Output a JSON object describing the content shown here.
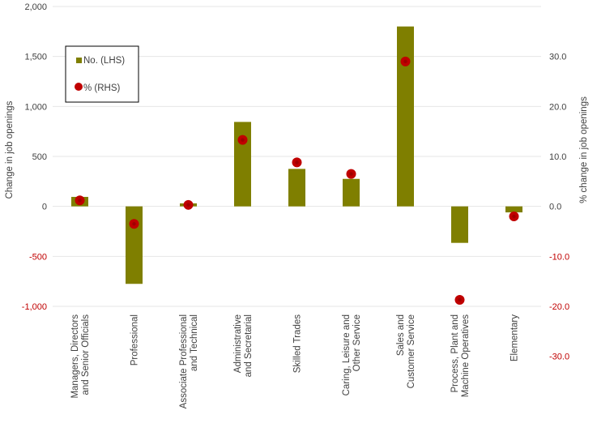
{
  "chart_data": {
    "type": "bar",
    "categories": [
      [
        "Managers, Directors",
        "and Senior Officials"
      ],
      [
        "Professional"
      ],
      [
        "Associate Professional",
        "and Technical"
      ],
      [
        "Administrative",
        "and Secretarial"
      ],
      [
        "Skilled Trades"
      ],
      [
        "Caring, Leisure and",
        "Other Service"
      ],
      [
        "Sales and",
        "Customer Service"
      ],
      [
        "Process, Plant and",
        "Machine Operatives"
      ],
      [
        "Elementary"
      ]
    ],
    "series": [
      {
        "name": "No. (LHS)",
        "type": "bar",
        "axis": "left",
        "values": [
          95,
          -775,
          30,
          845,
          375,
          275,
          1800,
          -365,
          -60
        ]
      },
      {
        "name": "% (RHS)",
        "type": "scatter",
        "axis": "right",
        "values": [
          1.2,
          -3.5,
          0.3,
          13.3,
          8.8,
          6.5,
          29.0,
          -18.7,
          -2.0
        ]
      }
    ],
    "ylabel": "Change in job openings",
    "y2label": "% change in job openings",
    "ylim": [
      -1000,
      2000
    ],
    "y2lim": [
      -30,
      35
    ],
    "yticks": [
      "-1,000",
      "-500",
      "0",
      "500",
      "1,000",
      "1,500",
      "2,000"
    ],
    "y2ticks": [
      "-30.0",
      "-20.0",
      "-10.0",
      "0.0",
      "10.0",
      "20.0",
      "30.0"
    ],
    "grid": true,
    "legend_position": "top-left",
    "colors": {
      "bar": "#7f7f00",
      "marker": "#c00000",
      "negative_tick": "#c00000",
      "grid": "#e6e6e6",
      "text": "#404040"
    }
  }
}
